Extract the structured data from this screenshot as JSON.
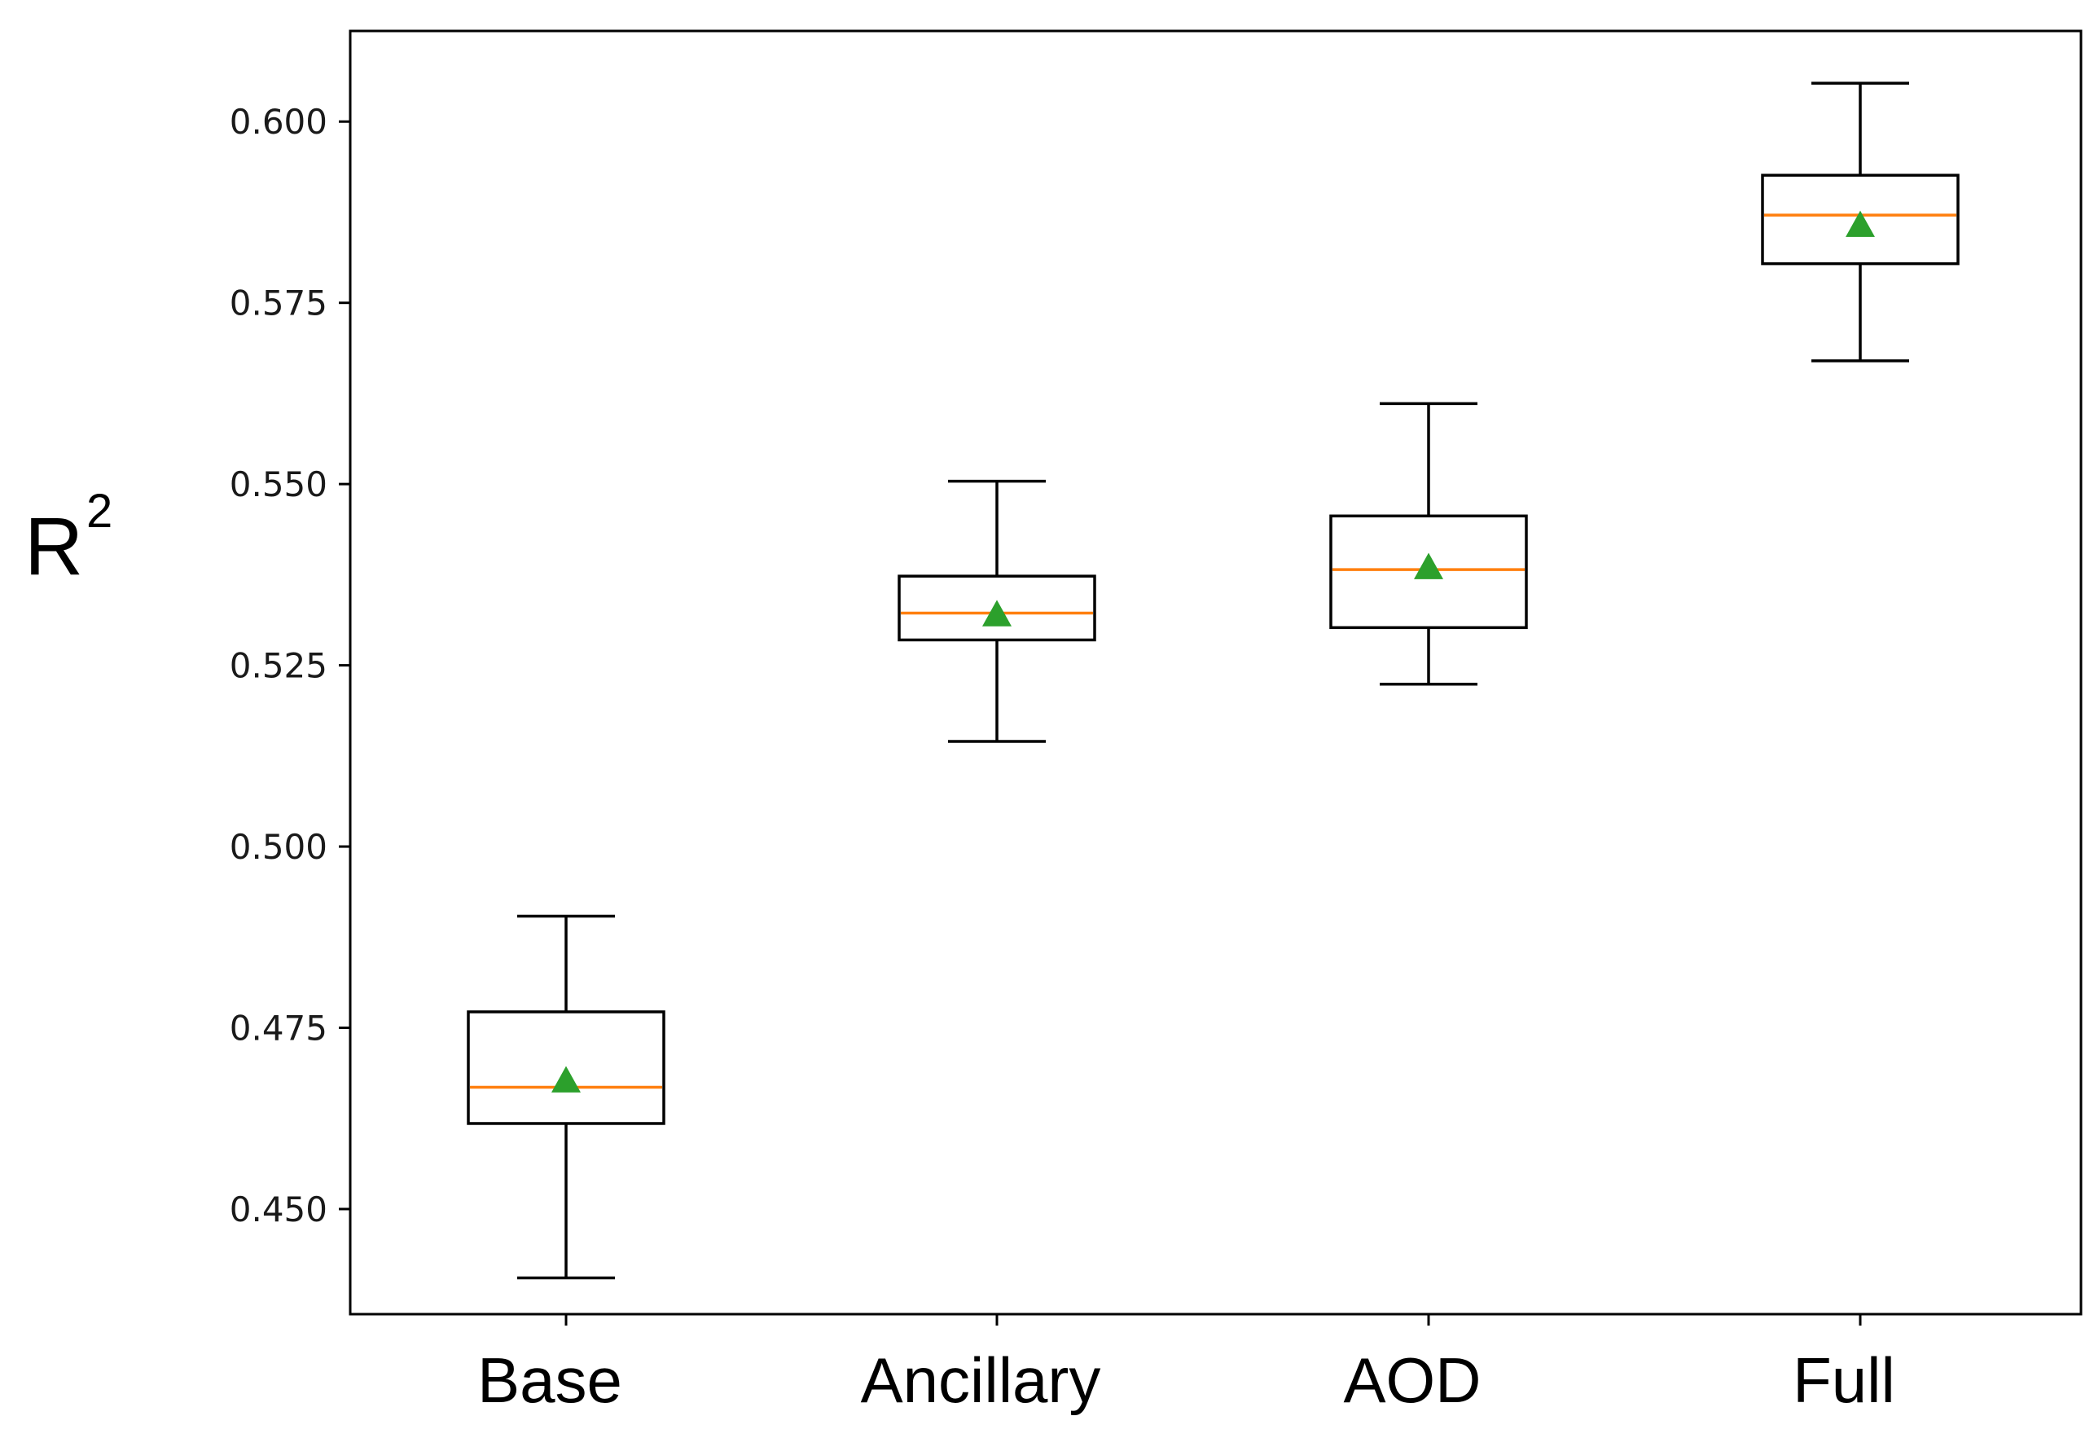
{
  "chart_data": {
    "type": "box",
    "title": "",
    "xlabel": "",
    "ylabel": "R",
    "ylabel_superscript": "2",
    "ylim": [
      0.4355,
      0.6125
    ],
    "yticks": [
      0.45,
      0.475,
      0.5,
      0.525,
      0.55,
      0.575,
      0.6
    ],
    "ytick_labels": [
      "0.450",
      "0.475",
      "0.500",
      "0.525",
      "0.550",
      "0.575",
      "0.600"
    ],
    "categories": [
      "Base",
      "Ancillary",
      "AOD",
      "Full"
    ],
    "boxes": [
      {
        "name": "Base",
        "whisker_low": 0.4405,
        "q1": 0.4618,
        "median": 0.4668,
        "mean": 0.4677,
        "q3": 0.4772,
        "whisker_high": 0.4904
      },
      {
        "name": "Ancillary",
        "whisker_low": 0.5145,
        "q1": 0.5285,
        "median": 0.5322,
        "mean": 0.532,
        "q3": 0.5373,
        "whisker_high": 0.5504
      },
      {
        "name": "AOD",
        "whisker_low": 0.5224,
        "q1": 0.5302,
        "median": 0.5382,
        "mean": 0.5385,
        "q3": 0.5456,
        "whisker_high": 0.5611
      },
      {
        "name": "Full",
        "whisker_low": 0.567,
        "q1": 0.5804,
        "median": 0.5871,
        "mean": 0.5857,
        "q3": 0.5926,
        "whisker_high": 0.6053
      }
    ],
    "colors": {
      "box": "#000000",
      "median": "#ff7f0e",
      "mean_marker": "#2ca02c",
      "axes": "#000000"
    },
    "grid": false,
    "legend": "none"
  }
}
